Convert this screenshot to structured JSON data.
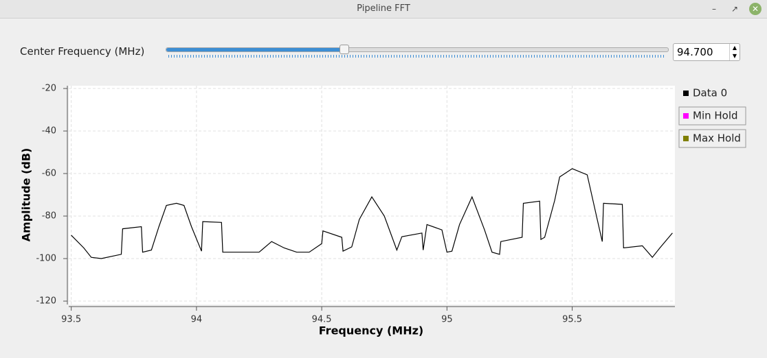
{
  "window": {
    "title": "Pipeline FFT"
  },
  "control": {
    "label": "Center Frequency (MHz)",
    "value_text": "94.700"
  },
  "chart_data": {
    "type": "line",
    "xlabel": "Frequency (MHz)",
    "ylabel": "Amplitude (dB)",
    "xlim": [
      93.49,
      95.91
    ],
    "ylim": [
      -121.6,
      -18.7
    ],
    "xticks": [
      93.5,
      94,
      94.5,
      95,
      95.5
    ],
    "yticks": [
      -20,
      -40,
      -60,
      -80,
      -100,
      -120
    ],
    "grid": true,
    "legend": [
      {
        "name": "Data 0",
        "color": "#000000"
      },
      {
        "name": "Min Hold",
        "color": "#ff00ff"
      },
      {
        "name": "Max Hold",
        "color": "#808000"
      }
    ],
    "series": [
      {
        "name": "Data 0",
        "color": "#000000",
        "x": [
          93.5,
          93.55,
          93.58,
          93.62,
          93.7,
          93.705,
          93.78,
          93.785,
          93.82,
          93.85,
          93.88,
          93.92,
          93.95,
          93.98,
          94.02,
          94.025,
          94.1,
          94.105,
          94.2,
          94.25,
          94.3,
          94.35,
          94.4,
          94.45,
          94.5,
          94.505,
          94.58,
          94.585,
          94.62,
          94.65,
          94.7,
          94.75,
          94.8,
          94.82,
          94.9,
          94.905,
          94.92,
          94.98,
          95.0,
          95.02,
          95.05,
          95.1,
          95.15,
          95.18,
          95.21,
          95.215,
          95.3,
          95.305,
          95.37,
          95.375,
          95.39,
          95.43,
          95.45,
          95.5,
          95.56,
          95.6,
          95.62,
          95.625,
          95.7,
          95.705,
          95.78,
          95.82,
          95.85,
          95.9
        ],
        "values": [
          -89,
          -95,
          -99.4,
          -100,
          -98,
          -86,
          -85,
          -97,
          -96,
          -85,
          -75,
          -74,
          -75,
          -85,
          -96.5,
          -82.6,
          -83,
          -97,
          -97,
          -97,
          -92,
          -95,
          -97,
          -97,
          -93,
          -87,
          -90,
          -96.5,
          -94.5,
          -81.6,
          -71,
          -80,
          -96,
          -89.7,
          -88,
          -96,
          -84,
          -86.5,
          -97,
          -96.5,
          -84,
          -71,
          -86.5,
          -97,
          -98,
          -92,
          -90,
          -74,
          -73,
          -91,
          -90,
          -72.6,
          -61.6,
          -57.7,
          -60.6,
          -81.6,
          -92,
          -74,
          -74.5,
          -95,
          -94,
          -99.4,
          -95,
          -88
        ]
      }
    ]
  }
}
